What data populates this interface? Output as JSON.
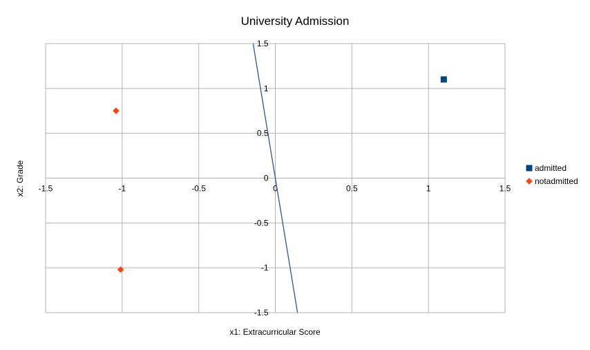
{
  "chart_data": {
    "type": "scatter",
    "title": "University Admission",
    "xlabel": "x1: Extracurricular Score",
    "ylabel": "x2: Grade",
    "xlim": [
      -1.5,
      1.5
    ],
    "ylim": [
      -1.5,
      1.5
    ],
    "x_ticks": [
      "-1.5",
      "-1",
      "-0.5",
      "0",
      "0.5",
      "1",
      "1.5"
    ],
    "y_ticks": [
      "1.5",
      "1",
      "0.5",
      "0",
      "-0.5",
      "-1",
      "-1.5"
    ],
    "grid": true,
    "legend_position": "right",
    "series": [
      {
        "name": "admitted",
        "marker": "square",
        "color": "#004586",
        "points": [
          {
            "x": 1.1,
            "y": 1.1
          }
        ]
      },
      {
        "name": "notadmitted",
        "marker": "diamond",
        "color": "#ff420e",
        "points": [
          {
            "x": -1.04,
            "y": 0.75
          },
          {
            "x": -1.01,
            "y": -1.02
          }
        ]
      }
    ],
    "boundary_line": {
      "color": "#2f5597",
      "points": [
        {
          "x": -0.145,
          "y": 1.5
        },
        {
          "x": 0.145,
          "y": -1.5
        }
      ]
    }
  }
}
